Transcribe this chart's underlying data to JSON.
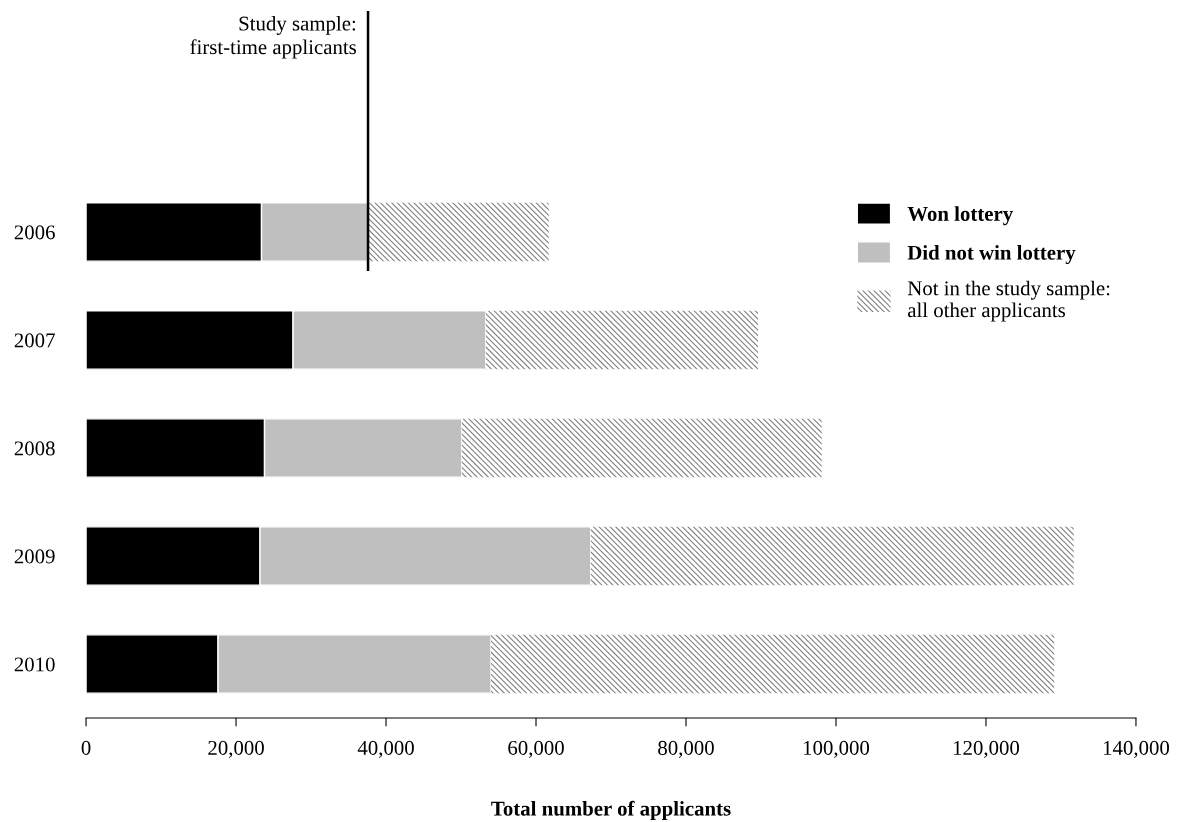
{
  "chart_data": {
    "type": "bar",
    "orientation": "horizontal",
    "stacked": true,
    "xlabel": "Total number of applicants",
    "categories": [
      "2006",
      "2007",
      "2008",
      "2009",
      "2010"
    ],
    "series": [
      {
        "name": "Won lottery",
        "color": "#000000",
        "values": [
          23400,
          27600,
          23800,
          23200,
          17600
        ]
      },
      {
        "name": "Did not win lottery",
        "color": "#bfbfbf",
        "values": [
          14200,
          25700,
          26300,
          44100,
          36400
        ]
      },
      {
        "name": "Not in the study sample:\nall other applicants",
        "color": "#808080",
        "values": [
          24100,
          36300,
          48000,
          64400,
          75100
        ]
      }
    ],
    "xlim": [
      0,
      140000
    ],
    "xticks": [
      0,
      {
        "value": 20000,
        "label": "20,000"
      },
      {
        "value": 40000,
        "label": "40,000"
      },
      {
        "value": 60000,
        "label": "60,000"
      },
      {
        "value": 80000,
        "label": "80,000"
      },
      {
        "value": 100000,
        "label": "100,000"
      },
      {
        "value": 120000,
        "label": "120,000"
      },
      {
        "value": 140000,
        "label": "140,000"
      }
    ],
    "ref_lines": [
      {
        "axis": "x",
        "value": 37600,
        "label": "Study sample:\nfirst-time applicants",
        "color": "#000000"
      }
    ],
    "legend": "top right",
    "grid": false
  }
}
